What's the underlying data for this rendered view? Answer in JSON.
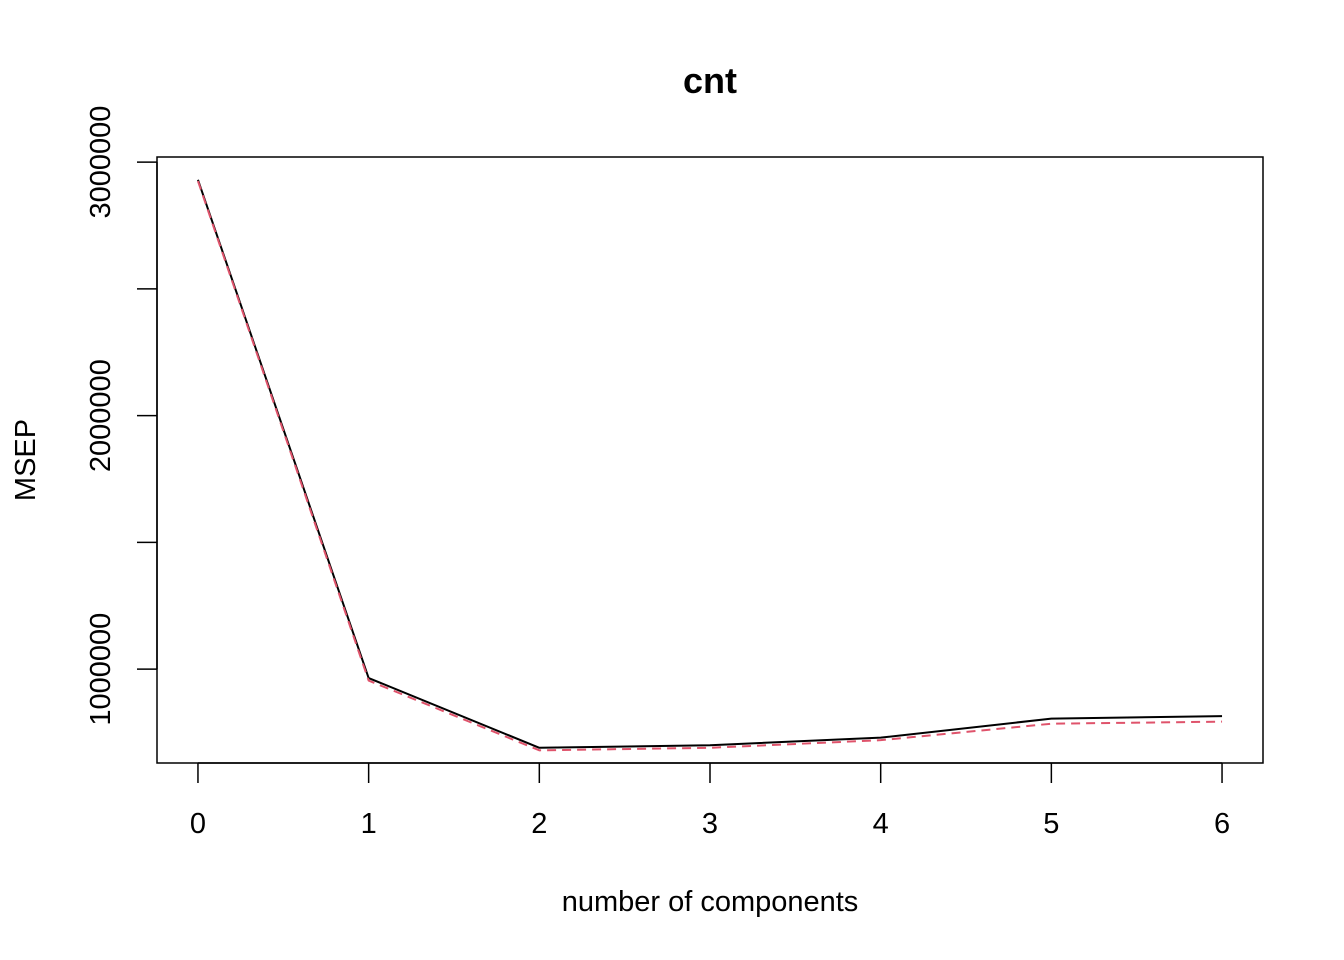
{
  "chart_data": {
    "type": "line",
    "title": "cnt",
    "xlabel": "number of components",
    "ylabel": "MSEP",
    "x": [
      0,
      1,
      2,
      3,
      4,
      5,
      6
    ],
    "x_ticks": [
      "0",
      "1",
      "2",
      "3",
      "4",
      "5",
      "6"
    ],
    "y_ticks": [
      "1000000",
      "2000000",
      "3000000"
    ],
    "y_tick_values": [
      1000000,
      2000000,
      3000000
    ],
    "y_minor_ticks": [
      1500000,
      2500000
    ],
    "xlim": [
      -0.24,
      6.24
    ],
    "ylim": [
      630000,
      3020000
    ],
    "grid": false,
    "legend": "none",
    "series": [
      {
        "style": "solid",
        "color": "#000000",
        "values": [
          2930000,
          965000,
          690000,
          700000,
          730000,
          805000,
          815000
        ]
      },
      {
        "style": "dashed",
        "color": "#DF536B",
        "values": [
          2925000,
          955000,
          680000,
          690000,
          720000,
          785000,
          793000
        ]
      }
    ]
  }
}
